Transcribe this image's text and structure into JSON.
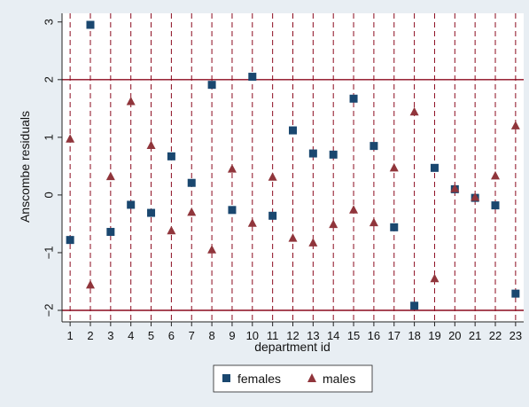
{
  "chart_data": {
    "type": "scatter",
    "title": "",
    "xlabel": "department id",
    "ylabel": "Anscombe residuals",
    "xlim": [
      0.6,
      23.4
    ],
    "ylim": [
      -2.2,
      3.15
    ],
    "x_ticks": [
      1,
      2,
      3,
      4,
      5,
      6,
      7,
      8,
      9,
      10,
      11,
      12,
      13,
      14,
      15,
      16,
      17,
      18,
      19,
      20,
      21,
      22,
      23
    ],
    "y_ticks": [
      -2,
      -1,
      0,
      1,
      2,
      3
    ],
    "y_tick_labels": [
      "−2",
      "−1",
      "0",
      "1",
      "2",
      "3"
    ],
    "vertical_dashed_lines_at": [
      1,
      2,
      3,
      4,
      5,
      6,
      7,
      8,
      9,
      10,
      11,
      12,
      13,
      14,
      15,
      16,
      17,
      18,
      19,
      20,
      21,
      22,
      23
    ],
    "reference_lines_y": [
      -2,
      2
    ],
    "legend_position": "bottom",
    "colors": {
      "background": "#e8eef3",
      "plot_area": "#ffffff",
      "reference": "#8b0a1e",
      "females": "#1a476f",
      "males": "#90353b"
    },
    "series": [
      {
        "name": "females",
        "marker": "square",
        "x": [
          1,
          2,
          3,
          4,
          5,
          6,
          7,
          8,
          9,
          10,
          11,
          12,
          13,
          14,
          15,
          16,
          17,
          18,
          19,
          20,
          21,
          22,
          23
        ],
        "y": [
          -0.78,
          2.95,
          -0.64,
          -0.17,
          -0.31,
          0.67,
          0.21,
          1.91,
          -0.26,
          2.05,
          -0.36,
          1.12,
          0.72,
          0.7,
          1.67,
          0.85,
          -0.56,
          -1.92,
          0.47,
          0.1,
          -0.05,
          -0.18,
          -1.71
        ]
      },
      {
        "name": "males",
        "marker": "triangle",
        "x": [
          1,
          2,
          3,
          4,
          5,
          6,
          7,
          8,
          9,
          10,
          11,
          12,
          13,
          14,
          15,
          16,
          17,
          18,
          19,
          20,
          21,
          22,
          23
        ],
        "y": [
          0.97,
          -1.56,
          0.32,
          1.62,
          0.86,
          -0.62,
          -0.3,
          -0.95,
          0.45,
          -0.49,
          0.31,
          -0.75,
          -0.83,
          -0.51,
          -0.26,
          -0.48,
          0.47,
          1.44,
          -1.45,
          0.11,
          -0.04,
          0.33,
          1.2
        ]
      }
    ]
  }
}
